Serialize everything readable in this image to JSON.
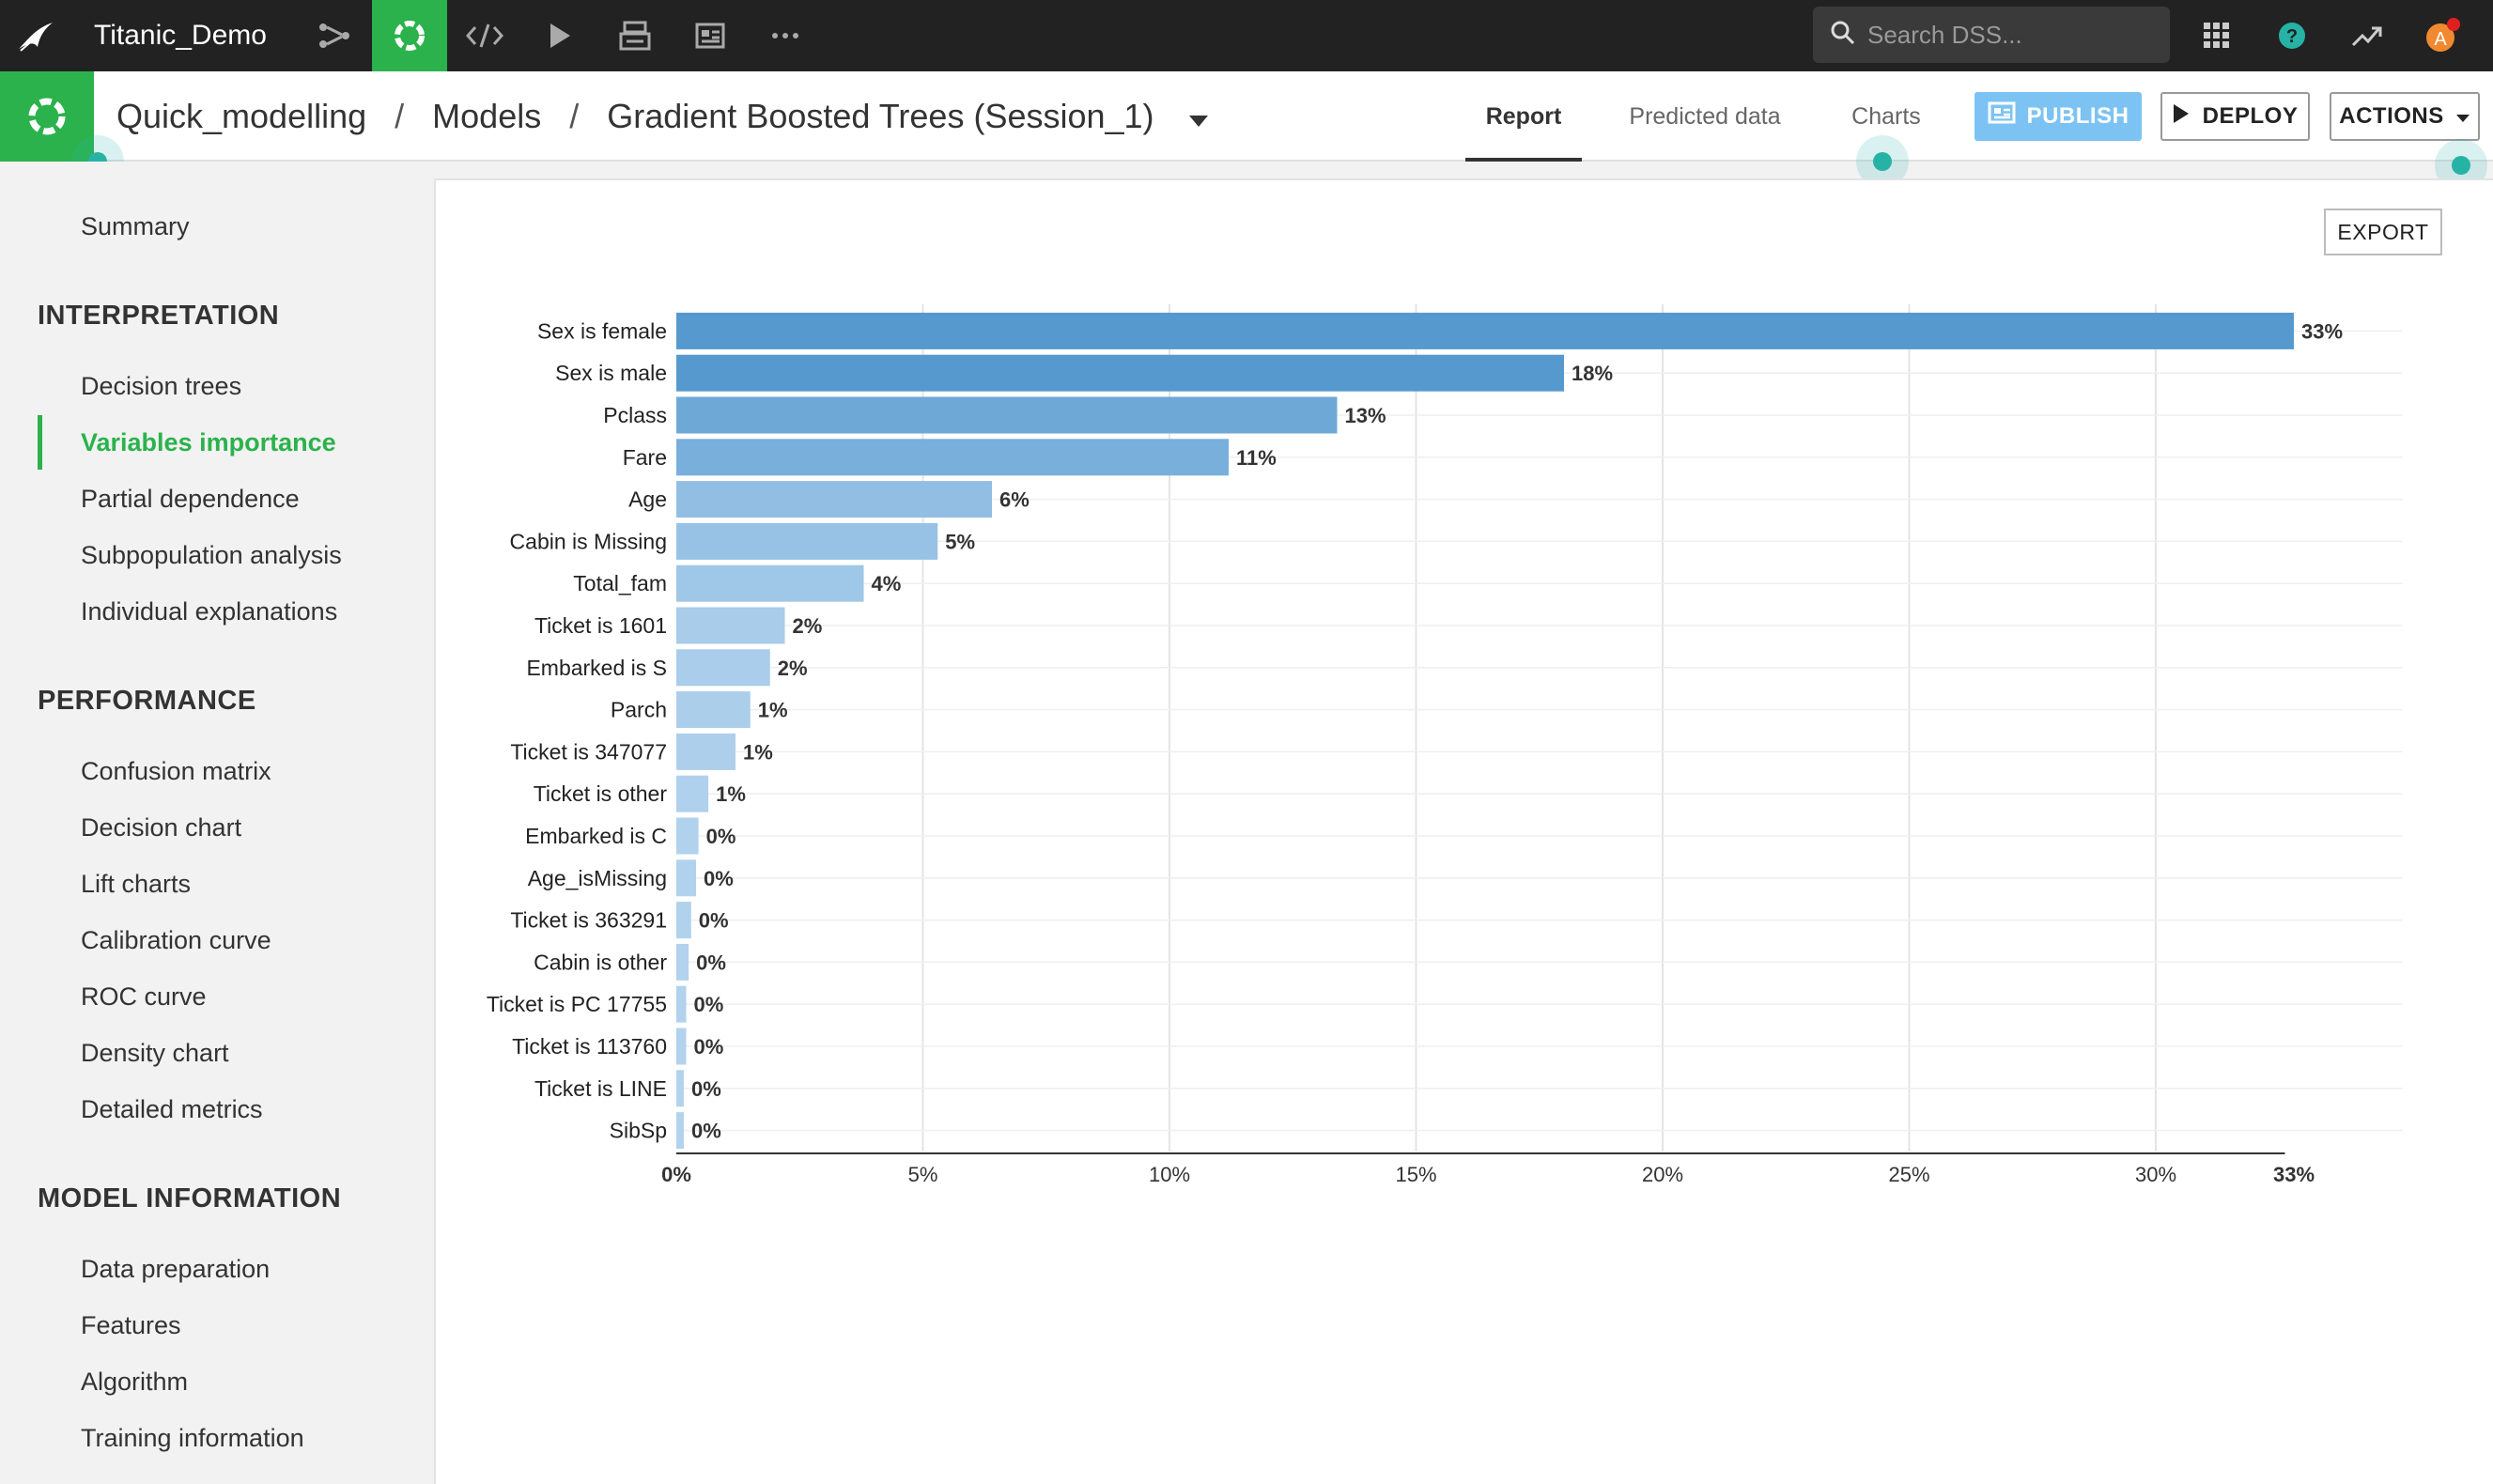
{
  "topnav": {
    "project_name": "Titanic_Demo",
    "search_placeholder": "Search DSS..."
  },
  "header": {
    "breadcrumb": [
      "Quick_modelling",
      "Models",
      "Gradient Boosted Trees (Session_1)"
    ],
    "tabs": [
      {
        "label": "Report",
        "active": true
      },
      {
        "label": "Predicted data",
        "active": false
      },
      {
        "label": "Charts",
        "active": false
      }
    ],
    "publish_label": "PUBLISH",
    "deploy_label": "DEPLOY",
    "actions_label": "ACTIONS"
  },
  "sidebar": {
    "summary": "Summary",
    "interpretation": {
      "title": "INTERPRETATION",
      "items": [
        "Decision trees",
        "Variables importance",
        "Partial dependence",
        "Subpopulation analysis",
        "Individual explanations"
      ],
      "active": "Variables importance"
    },
    "performance": {
      "title": "PERFORMANCE",
      "items": [
        "Confusion matrix",
        "Decision chart",
        "Lift charts",
        "Calibration curve",
        "ROC curve",
        "Density chart",
        "Detailed metrics"
      ]
    },
    "model_information": {
      "title": "MODEL INFORMATION",
      "items": [
        "Data preparation",
        "Features",
        "Algorithm",
        "Training information"
      ]
    }
  },
  "export_label": "EXPORT",
  "colors": {
    "brand_green": "#2bb24c",
    "nav_dark": "#222222",
    "bar_dark": "#5699cf",
    "bar_light": "#b3d3ee",
    "publish_blue": "#7cc3f3"
  },
  "chart_data": {
    "type": "bar",
    "orientation": "horizontal",
    "categories": [
      "Sex is female",
      "Sex is male",
      "Pclass",
      "Fare",
      "Age",
      "Cabin is Missing",
      "Total_fam",
      "Ticket is 1601",
      "Embarked is S",
      "Parch",
      "Ticket is 347077",
      "Ticket is other",
      "Embarked is C",
      "Age_isMissing",
      "Ticket is 363291",
      "Cabin is other",
      "Ticket is PC 17755",
      "Ticket is 113760",
      "Ticket is LINE",
      "SibSp"
    ],
    "values": [
      32.8,
      18.0,
      13.4,
      11.2,
      6.4,
      5.3,
      3.8,
      2.2,
      1.9,
      1.5,
      1.2,
      0.65,
      0.45,
      0.4,
      0.3,
      0.25,
      0.2,
      0.2,
      0.15,
      0.1
    ],
    "value_labels": [
      "33%",
      "18%",
      "13%",
      "11%",
      "6%",
      "5%",
      "4%",
      "2%",
      "2%",
      "1%",
      "1%",
      "1%",
      "0%",
      "0%",
      "0%",
      "0%",
      "0%",
      "0%",
      "0%",
      "0%"
    ],
    "xticks": [
      "0%",
      "5%",
      "10%",
      "15%",
      "20%",
      "25%",
      "30%",
      "33%"
    ],
    "xtick_values": [
      0,
      5,
      10,
      15,
      20,
      25,
      30,
      32.8
    ],
    "xlim": [
      0,
      35
    ],
    "grid": true,
    "title": "",
    "xlabel": "",
    "ylabel": ""
  }
}
